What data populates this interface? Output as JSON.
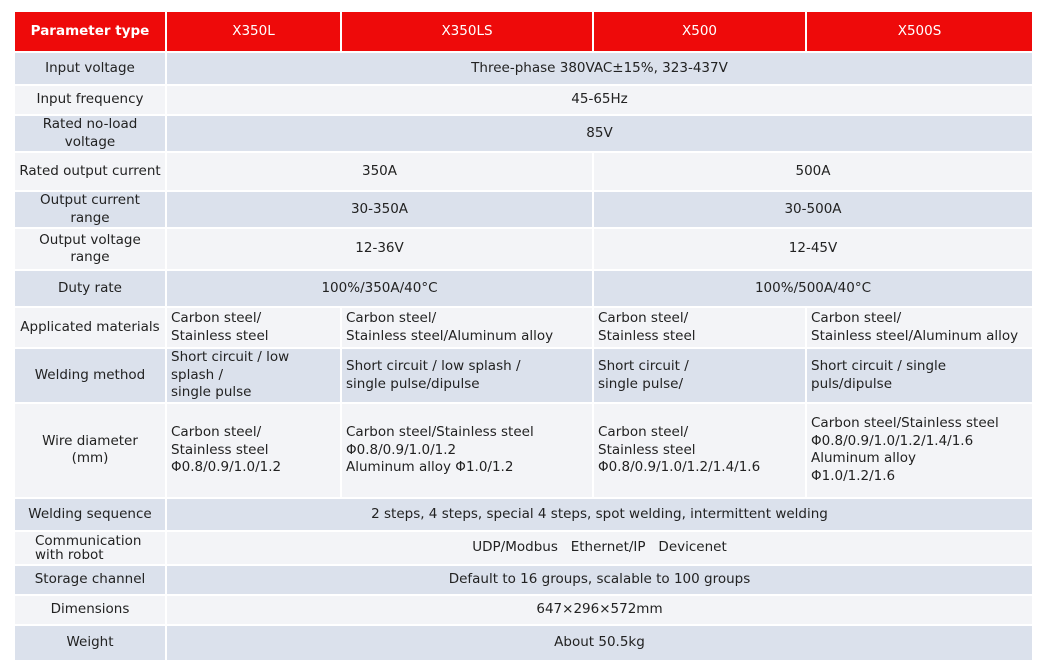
{
  "header": [
    "Parameter type",
    "X350L",
    "X350LS",
    "X500",
    "X500S"
  ],
  "rows": [
    {
      "label": "Input voltage",
      "cells": [
        "Three-phase 380VAC±15%, 323-437V"
      ]
    },
    {
      "label": "Input frequency",
      "cells": [
        "45-65Hz"
      ]
    },
    {
      "label": "Rated no-load voltage",
      "cells": [
        "85V"
      ]
    },
    {
      "label": "Rated output current",
      "cells": [
        "350A",
        "500A"
      ]
    },
    {
      "label": "Output current range",
      "cells": [
        "30-350A",
        "30-500A"
      ]
    },
    {
      "label": "Output voltage range",
      "cells": [
        "12-36V",
        "12-45V"
      ]
    },
    {
      "label": "Duty rate",
      "cells": [
        "100%/350A/40°C",
        "100%/500A/40°C"
      ]
    },
    {
      "label": "Applicated  materials",
      "cells": [
        "Carbon steel/\nStainless steel",
        "Carbon steel/\nStainless steel/Aluminum alloy",
        "Carbon steel/\nStainless steel",
        "Carbon steel/\nStainless steel/Aluminum alloy"
      ]
    },
    {
      "label": "Welding method",
      "cells": [
        "Short circuit / low splash /\nsingle pulse",
        "Short circuit / low splash /\nsingle pulse/dipulse",
        "Short circuit /\nsingle pulse/",
        "Short circuit / single puls/dipulse"
      ]
    },
    {
      "label": "Wire diameter\n(mm)",
      "cells": [
        "Carbon steel/\nStainless steel\nΦ0.8/0.9/1.0/1.2",
        "Carbon steel/Stainless steel\nΦ0.8/0.9/1.0/1.2\nAluminum alloy Φ1.0/1.2",
        "Carbon steel/\nStainless steel\nΦ0.8/0.9/1.0/1.2/1.4/1.6",
        "Carbon steel/Stainless steel\nΦ0.8/0.9/1.0/1.2/1.4/1.6\nAluminum alloy\nΦ1.0/1.2/1.6"
      ]
    },
    {
      "label": "Welding sequence",
      "cells": [
        "2 steps, 4 steps, special 4 steps, spot welding, intermittent welding"
      ]
    },
    {
      "label": "Communication\nwith robot",
      "cells": [
        "UDP/Modbus   Ethernet/IP   Devicenet"
      ]
    },
    {
      "label": "Storage channel",
      "cells": [
        "Default to 16 groups, scalable to 100 groups"
      ]
    },
    {
      "label": "Dimensions",
      "cells": [
        "647×296×572mm"
      ]
    },
    {
      "label": "Weight",
      "cells": [
        "About 50.5kg"
      ]
    }
  ]
}
